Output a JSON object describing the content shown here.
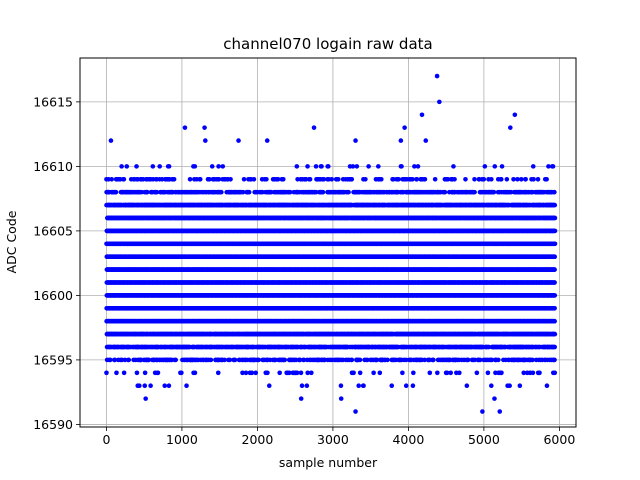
{
  "chart_data": {
    "type": "scatter",
    "title": "channel070 logain raw data",
    "xlabel": "sample number",
    "ylabel": "ADC Code",
    "xlim": [
      -350,
      6220
    ],
    "ylim": [
      16589.8,
      16618.4
    ],
    "xticks": [
      0,
      1000,
      2000,
      3000,
      4000,
      5000,
      6000
    ],
    "yticks": [
      16590,
      16595,
      16600,
      16605,
      16610,
      16615
    ],
    "grid": true,
    "marker_color": "#0000ff",
    "n_samples": 5940,
    "band_values": [
      16593,
      16594,
      16595,
      16596,
      16597,
      16598,
      16599,
      16600,
      16601,
      16602,
      16603,
      16604,
      16605,
      16606,
      16607,
      16608,
      16609,
      16610
    ],
    "band_density": [
      0.025,
      0.06,
      0.38,
      0.72,
      0.92,
      0.99,
      1.0,
      1.0,
      1.0,
      1.0,
      1.0,
      1.0,
      1.0,
      0.97,
      0.85,
      0.48,
      0.16,
      0.045
    ],
    "outliers": [
      {
        "x": 60,
        "y": 16612
      },
      {
        "x": 1040,
        "y": 16613
      },
      {
        "x": 1300,
        "y": 16613
      },
      {
        "x": 1310,
        "y": 16612
      },
      {
        "x": 1750,
        "y": 16612
      },
      {
        "x": 2130,
        "y": 16612
      },
      {
        "x": 2750,
        "y": 16613
      },
      {
        "x": 3300,
        "y": 16612
      },
      {
        "x": 3900,
        "y": 16612
      },
      {
        "x": 3950,
        "y": 16613
      },
      {
        "x": 4180,
        "y": 16614
      },
      {
        "x": 4230,
        "y": 16612
      },
      {
        "x": 4380,
        "y": 16617
      },
      {
        "x": 4410,
        "y": 16615
      },
      {
        "x": 5350,
        "y": 16613
      },
      {
        "x": 5410,
        "y": 16614
      },
      {
        "x": 520,
        "y": 16592
      },
      {
        "x": 2580,
        "y": 16592
      },
      {
        "x": 3110,
        "y": 16592
      },
      {
        "x": 3300,
        "y": 16591
      },
      {
        "x": 4980,
        "y": 16591
      },
      {
        "x": 5140,
        "y": 16592
      },
      {
        "x": 5210,
        "y": 16591
      }
    ]
  }
}
